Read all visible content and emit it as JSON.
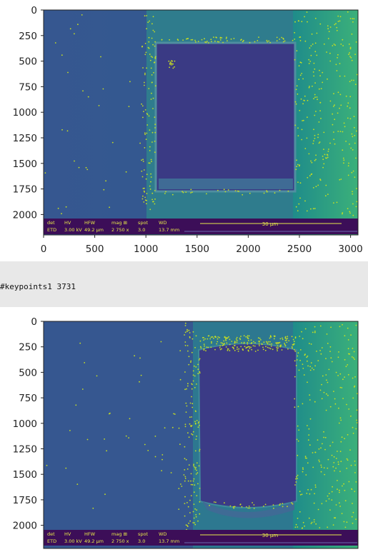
{
  "stdout": {
    "text": "#keypoints1 3731"
  },
  "plot1": {
    "y_ticks": [
      "0",
      "250",
      "500",
      "750",
      "1000",
      "1250",
      "1500",
      "1750",
      "2000"
    ],
    "x_ticks": [
      "0",
      "500",
      "1000",
      "1500",
      "2000",
      "2500",
      "3000"
    ],
    "sem_databar": {
      "headers": [
        "det",
        "HV",
        "HFW",
        "mag ⊞",
        "spot",
        "WD"
      ],
      "values": [
        "ETD",
        "3.00 kV",
        "49.2 µm",
        "2 750 x",
        "3.0",
        "13.7 mm"
      ],
      "scale": "30 µm"
    }
  },
  "plot2": {
    "y_ticks": [
      "0",
      "250",
      "500",
      "750",
      "1000",
      "1250",
      "1500",
      "1750",
      "2000"
    ],
    "sem_databar": {
      "headers": [
        "det",
        "HV",
        "HFW",
        "mag ⊞",
        "spot",
        "WD"
      ],
      "values": [
        "ETD",
        "3.00 kV",
        "49.2 µm",
        "2 750 x",
        "3.0",
        "13.7 mm"
      ],
      "scale": "30 µm"
    }
  },
  "colors": {
    "background_dark": "#3b518b",
    "teal": "#29a38a",
    "keypoint": "#c8e020",
    "square": "#3f3a85"
  }
}
